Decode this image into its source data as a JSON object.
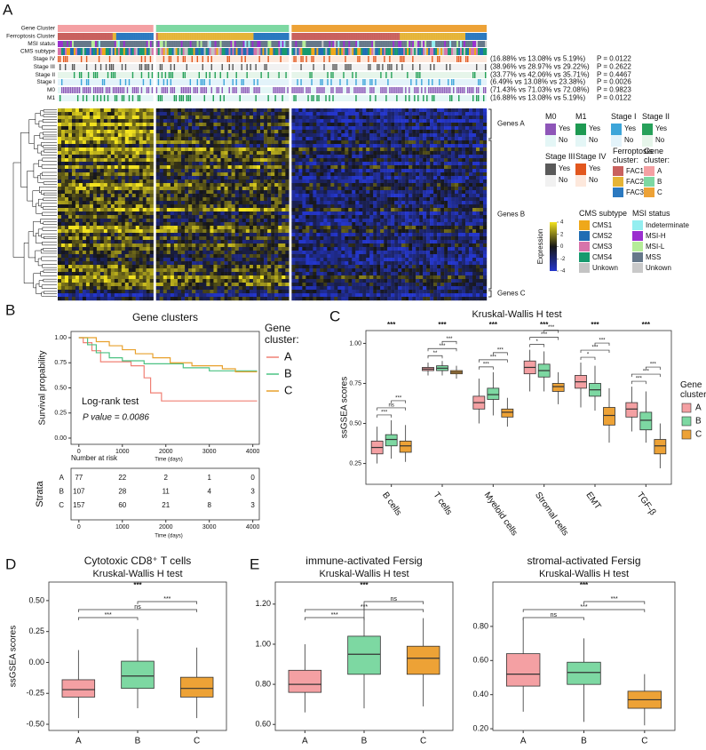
{
  "chart_data": [
    {
      "type": "heatmap",
      "panel": "A",
      "tracks": [
        "Gene Cluster",
        "Ferroptosis Cluster",
        "MSI status",
        "CMS subtype"
      ],
      "clinical": [
        {
          "name": "Stage IV",
          "stats": "(16.88% vs 13.08% vs 5.19%)",
          "p": "P = 0.0122"
        },
        {
          "name": "Stage III",
          "stats": "(38.96% vs 28.97% vs 29.22%)",
          "p": "P = 0.2622"
        },
        {
          "name": "Stage II",
          "stats": "(33.77% vs 42.06% vs 35.71%)",
          "p": "P = 0.4467"
        },
        {
          "name": "Stage I",
          "stats": "(6.49% vs 13.08% vs 23.38%)",
          "p": "P = 0.0026"
        },
        {
          "name": "M0",
          "stats": "(71.43% vs 71.03% vs 72.08%)",
          "p": "P = 0.9823"
        },
        {
          "name": "M1",
          "stats": "(16.88% vs 13.08% vs 5.19%)",
          "p": "P = 0.0122"
        }
      ],
      "gene_groups": [
        "Genes A",
        "Genes B",
        "Genes C"
      ],
      "legends": [
        {
          "title": "M0",
          "items": [
            {
              "label": "Yes",
              "color": "#8e56b8"
            },
            {
              "label": "No",
              "color": "#e4f6f6"
            }
          ]
        },
        {
          "title": "M1",
          "items": [
            {
              "label": "Yes",
              "color": "#1e9a52"
            },
            {
              "label": "No",
              "color": "#e4f6f6"
            }
          ]
        },
        {
          "title": "Stage I",
          "items": [
            {
              "label": "Yes",
              "color": "#3da5d9"
            },
            {
              "label": "No",
              "color": "#e3f3fa"
            }
          ]
        },
        {
          "title": "Stage II",
          "items": [
            {
              "label": "Yes",
              "color": "#27a15a"
            },
            {
              "label": "No",
              "color": "#e6f5ea"
            }
          ]
        },
        {
          "title": "Stage III",
          "items": [
            {
              "label": "Yes",
              "color": "#5a5a5a"
            },
            {
              "label": "No",
              "color": "#f1f1f1"
            }
          ]
        },
        {
          "title": "Stage IV",
          "items": [
            {
              "label": "Yes",
              "color": "#e2571e"
            },
            {
              "label": "No",
              "color": "#fde8dc"
            }
          ]
        },
        {
          "title": "Ferroptosis cluster:",
          "items": [
            {
              "label": "FAC1",
              "color": "#c9615e"
            },
            {
              "label": "FAC2",
              "color": "#e5b437"
            },
            {
              "label": "FAC3",
              "color": "#2b79c0"
            }
          ]
        },
        {
          "title": "Gene cluster:",
          "items": [
            {
              "label": "A",
              "color": "#f4a0a3"
            },
            {
              "label": "B",
              "color": "#7dd8a2"
            },
            {
              "label": "C",
              "color": "#eda236"
            }
          ]
        },
        {
          "title": "CMS subtype",
          "items": [
            {
              "label": "CMS1",
              "color": "#efa81a"
            },
            {
              "label": "CMS2",
              "color": "#1f6db3"
            },
            {
              "label": "CMS3",
              "color": "#d774aa"
            },
            {
              "label": "CMS4",
              "color": "#179a6e"
            },
            {
              "label": "Unkown",
              "color": "#c3c3c3"
            }
          ]
        },
        {
          "title": "MSI status",
          "items": [
            {
              "label": "Indeterminate",
              "color": "#93eef0"
            },
            {
              "label": "MSI-H",
              "color": "#9a2fcf"
            },
            {
              "label": "MSI-L",
              "color": "#b5ec98"
            },
            {
              "label": "MSS",
              "color": "#66788a"
            },
            {
              "label": "Unkown",
              "color": "#c9c9c9"
            }
          ]
        }
      ],
      "colorbar": {
        "title": "Expression",
        "ticks": [
          4,
          2,
          0,
          -2,
          -4
        ],
        "colors": [
          "#f2e21e",
          "#161616",
          "#2436cc"
        ]
      }
    },
    {
      "type": "km",
      "panel": "B",
      "title": "Gene clusters",
      "ylabel": "Survival propability",
      "xlabel": "Time (days)",
      "legend_title": "Gene cluster:",
      "annotations": [
        "Log-rank test",
        "P value = 0.0086"
      ],
      "xlim": [
        -180,
        4150
      ],
      "xticks": [
        0,
        1000,
        2000,
        3000,
        4000
      ],
      "ylim": [
        -0.062,
        1.062
      ],
      "yticks": [
        {
          "value": 0,
          "label": "0.00"
        },
        {
          "value": 0.25,
          "label": "0.25"
        },
        {
          "value": 0.5,
          "label": "0.50"
        },
        {
          "value": 0.75,
          "label": "0.75"
        },
        {
          "value": 1,
          "label": "1.00"
        }
      ],
      "series": [
        {
          "name": "A",
          "color": "#f08075",
          "x": [
            0,
            100,
            100,
            300,
            300,
            500,
            500,
            1200,
            1200,
            1500,
            1500,
            1650,
            1650,
            1900,
            1900,
            4100
          ],
          "values": [
            1,
            1,
            0.95,
            0.95,
            0.87,
            0.87,
            0.76,
            0.76,
            0.72,
            0.72,
            0.6,
            0.6,
            0.45,
            0.45,
            0.37,
            0.37
          ]
        },
        {
          "name": "B",
          "color": "#4cc283",
          "x": [
            0,
            200,
            200,
            400,
            400,
            700,
            700,
            1000,
            1000,
            1500,
            1500,
            2400,
            2400,
            3000,
            3000,
            4100
          ],
          "values": [
            1,
            1,
            0.93,
            0.93,
            0.85,
            0.85,
            0.8,
            0.8,
            0.77,
            0.77,
            0.74,
            0.74,
            0.7,
            0.7,
            0.67,
            0.67
          ]
        },
        {
          "name": "C",
          "color": "#e8a02c",
          "x": [
            0,
            400,
            400,
            700,
            700,
            1000,
            1000,
            1300,
            1300,
            1700,
            1700,
            2100,
            2100,
            2600,
            2600,
            3300,
            3300,
            3600,
            3600,
            4100
          ],
          "values": [
            1,
            1,
            0.96,
            0.96,
            0.92,
            0.92,
            0.88,
            0.88,
            0.84,
            0.84,
            0.8,
            0.8,
            0.75,
            0.75,
            0.72,
            0.72,
            0.69,
            0.69,
            0.66,
            0.66
          ]
        }
      ],
      "risk_table": {
        "title": "Number at risk",
        "ylabel": "Strata",
        "xlabel": "Time (days)",
        "times": [
          0,
          1000,
          2000,
          3000,
          4000
        ],
        "rows": [
          {
            "name": "A",
            "values": [
              77,
              22,
              2,
              1,
              0
            ]
          },
          {
            "name": "B",
            "values": [
              107,
              28,
              11,
              4,
              3
            ]
          },
          {
            "name": "C",
            "values": [
              157,
              60,
              21,
              8,
              3
            ]
          }
        ]
      }
    },
    {
      "type": "grouped_boxplot",
      "panel": "C",
      "title": "Kruskal-Wallis H test",
      "ylabel": "ssGSEA scores",
      "legend_title": "Gene cluster:",
      "categories": [
        "B cells",
        "T cells",
        "Myeloid cells",
        "Stromal cells",
        "EMT",
        "TGF-β"
      ],
      "significance": [
        "***",
        "***",
        "***",
        "***",
        "***",
        "***"
      ],
      "comparisons": [
        [
          "***",
          "ns",
          "***"
        ],
        [
          "**",
          "***",
          "***"
        ],
        [
          "***",
          "***",
          "***"
        ],
        [
          "*",
          "***",
          "***"
        ],
        [
          "*",
          "***",
          "***"
        ],
        [
          "***",
          "***",
          "***"
        ]
      ],
      "ylim": [
        0.12,
        1.08
      ],
      "yticks": [
        {
          "value": 0.25,
          "label": "0.25"
        },
        {
          "value": 0.5,
          "label": "0.50"
        },
        {
          "value": 0.75,
          "label": "0.75"
        },
        {
          "value": 1,
          "label": "1.00"
        }
      ],
      "series": [
        {
          "name": "A",
          "color": "#f4a0a3",
          "values": [
            [
              0.25,
              0.31,
              0.35,
              0.39,
              0.48
            ],
            [
              0.8,
              0.83,
              0.84,
              0.85,
              0.88
            ],
            [
              0.5,
              0.59,
              0.63,
              0.67,
              0.78
            ],
            [
              0.7,
              0.81,
              0.85,
              0.89,
              0.96
            ],
            [
              0.6,
              0.72,
              0.76,
              0.8,
              0.88
            ],
            [
              0.45,
              0.54,
              0.59,
              0.63,
              0.73
            ]
          ]
        },
        {
          "name": "B",
          "color": "#7dd8a2",
          "values": [
            [
              0.28,
              0.36,
              0.4,
              0.43,
              0.52
            ],
            [
              0.8,
              0.83,
              0.845,
              0.86,
              0.89
            ],
            [
              0.55,
              0.65,
              0.68,
              0.72,
              0.82
            ],
            [
              0.7,
              0.79,
              0.83,
              0.87,
              0.95
            ],
            [
              0.58,
              0.67,
              0.71,
              0.75,
              0.86
            ],
            [
              0.38,
              0.46,
              0.52,
              0.57,
              0.7
            ]
          ]
        },
        {
          "name": "C",
          "color": "#eda236",
          "values": [
            [
              0.26,
              0.32,
              0.36,
              0.39,
              0.49
            ],
            [
              0.78,
              0.81,
              0.82,
              0.83,
              0.86
            ],
            [
              0.48,
              0.54,
              0.57,
              0.59,
              0.66
            ],
            [
              0.62,
              0.7,
              0.73,
              0.75,
              0.82
            ],
            [
              0.38,
              0.49,
              0.55,
              0.6,
              0.72
            ],
            [
              0.22,
              0.31,
              0.36,
              0.4,
              0.5
            ]
          ]
        }
      ]
    },
    {
      "type": "boxplot",
      "panel": "D",
      "title": "Cytotoxic CD8⁺ T cells",
      "subtitle": "Kruskal-Wallis H test",
      "significance": "***",
      "ylabel": "ssGSEA scores",
      "categories": [
        "A",
        "B",
        "C"
      ],
      "colors": [
        "#f4a0a3",
        "#7dd8a2",
        "#eda236"
      ],
      "values": [
        [
          -0.45,
          -0.28,
          -0.22,
          -0.14,
          0.1
        ],
        [
          -0.37,
          -0.21,
          -0.11,
          0.01,
          0.27
        ],
        [
          -0.45,
          -0.28,
          -0.21,
          -0.12,
          0.12
        ]
      ],
      "comparisons": [
        "***",
        "ns",
        "***"
      ],
      "ylim": [
        -0.55,
        0.65
      ],
      "yticks": [
        {
          "value": -0.5,
          "label": "-0.50"
        },
        {
          "value": -0.25,
          "label": "-0.25"
        },
        {
          "value": 0,
          "label": "0.00"
        },
        {
          "value": 0.25,
          "label": "0.25"
        },
        {
          "value": 0.5,
          "label": "0.50"
        }
      ]
    },
    {
      "type": "boxplot",
      "panel": "E",
      "title": "immune-activated Fersig",
      "subtitle": "Kruskal-Wallis H test",
      "significance": "***",
      "categories": [
        "A",
        "B",
        "C"
      ],
      "colors": [
        "#f4a0a3",
        "#7dd8a2",
        "#eda236"
      ],
      "values": [
        [
          0.66,
          0.76,
          0.8,
          0.87,
          1.0
        ],
        [
          0.68,
          0.85,
          0.95,
          1.04,
          1.2
        ],
        [
          0.69,
          0.85,
          0.93,
          0.99,
          1.13
        ]
      ],
      "comparisons": [
        "***",
        "***",
        "ns"
      ],
      "ylim": [
        0.57,
        1.31
      ],
      "yticks": [
        {
          "value": 0.6,
          "label": "0.60"
        },
        {
          "value": 0.8,
          "label": "0.80"
        },
        {
          "value": 1,
          "label": "1.00"
        },
        {
          "value": 1.2,
          "label": "1.20"
        }
      ]
    },
    {
      "type": "boxplot",
      "title": "stromal-activated Fersig",
      "subtitle": "Kruskal-Wallis H test",
      "significance": "***",
      "categories": [
        "A",
        "B",
        "C"
      ],
      "colors": [
        "#f4a0a3",
        "#7dd8a2",
        "#eda236"
      ],
      "values": [
        [
          0.3,
          0.45,
          0.52,
          0.64,
          0.85
        ],
        [
          0.24,
          0.46,
          0.53,
          0.59,
          0.73
        ],
        [
          0.22,
          0.32,
          0.37,
          0.42,
          0.52
        ]
      ],
      "comparisons": [
        "ns",
        "***",
        "***"
      ],
      "ylim": [
        0.19,
        1.06
      ],
      "yticks": [
        {
          "value": 0.2,
          "label": "0.20"
        },
        {
          "value": 0.4,
          "label": "0.40"
        },
        {
          "value": 0.6,
          "label": "0.60"
        },
        {
          "value": 0.8,
          "label": "0.80"
        }
      ]
    }
  ]
}
